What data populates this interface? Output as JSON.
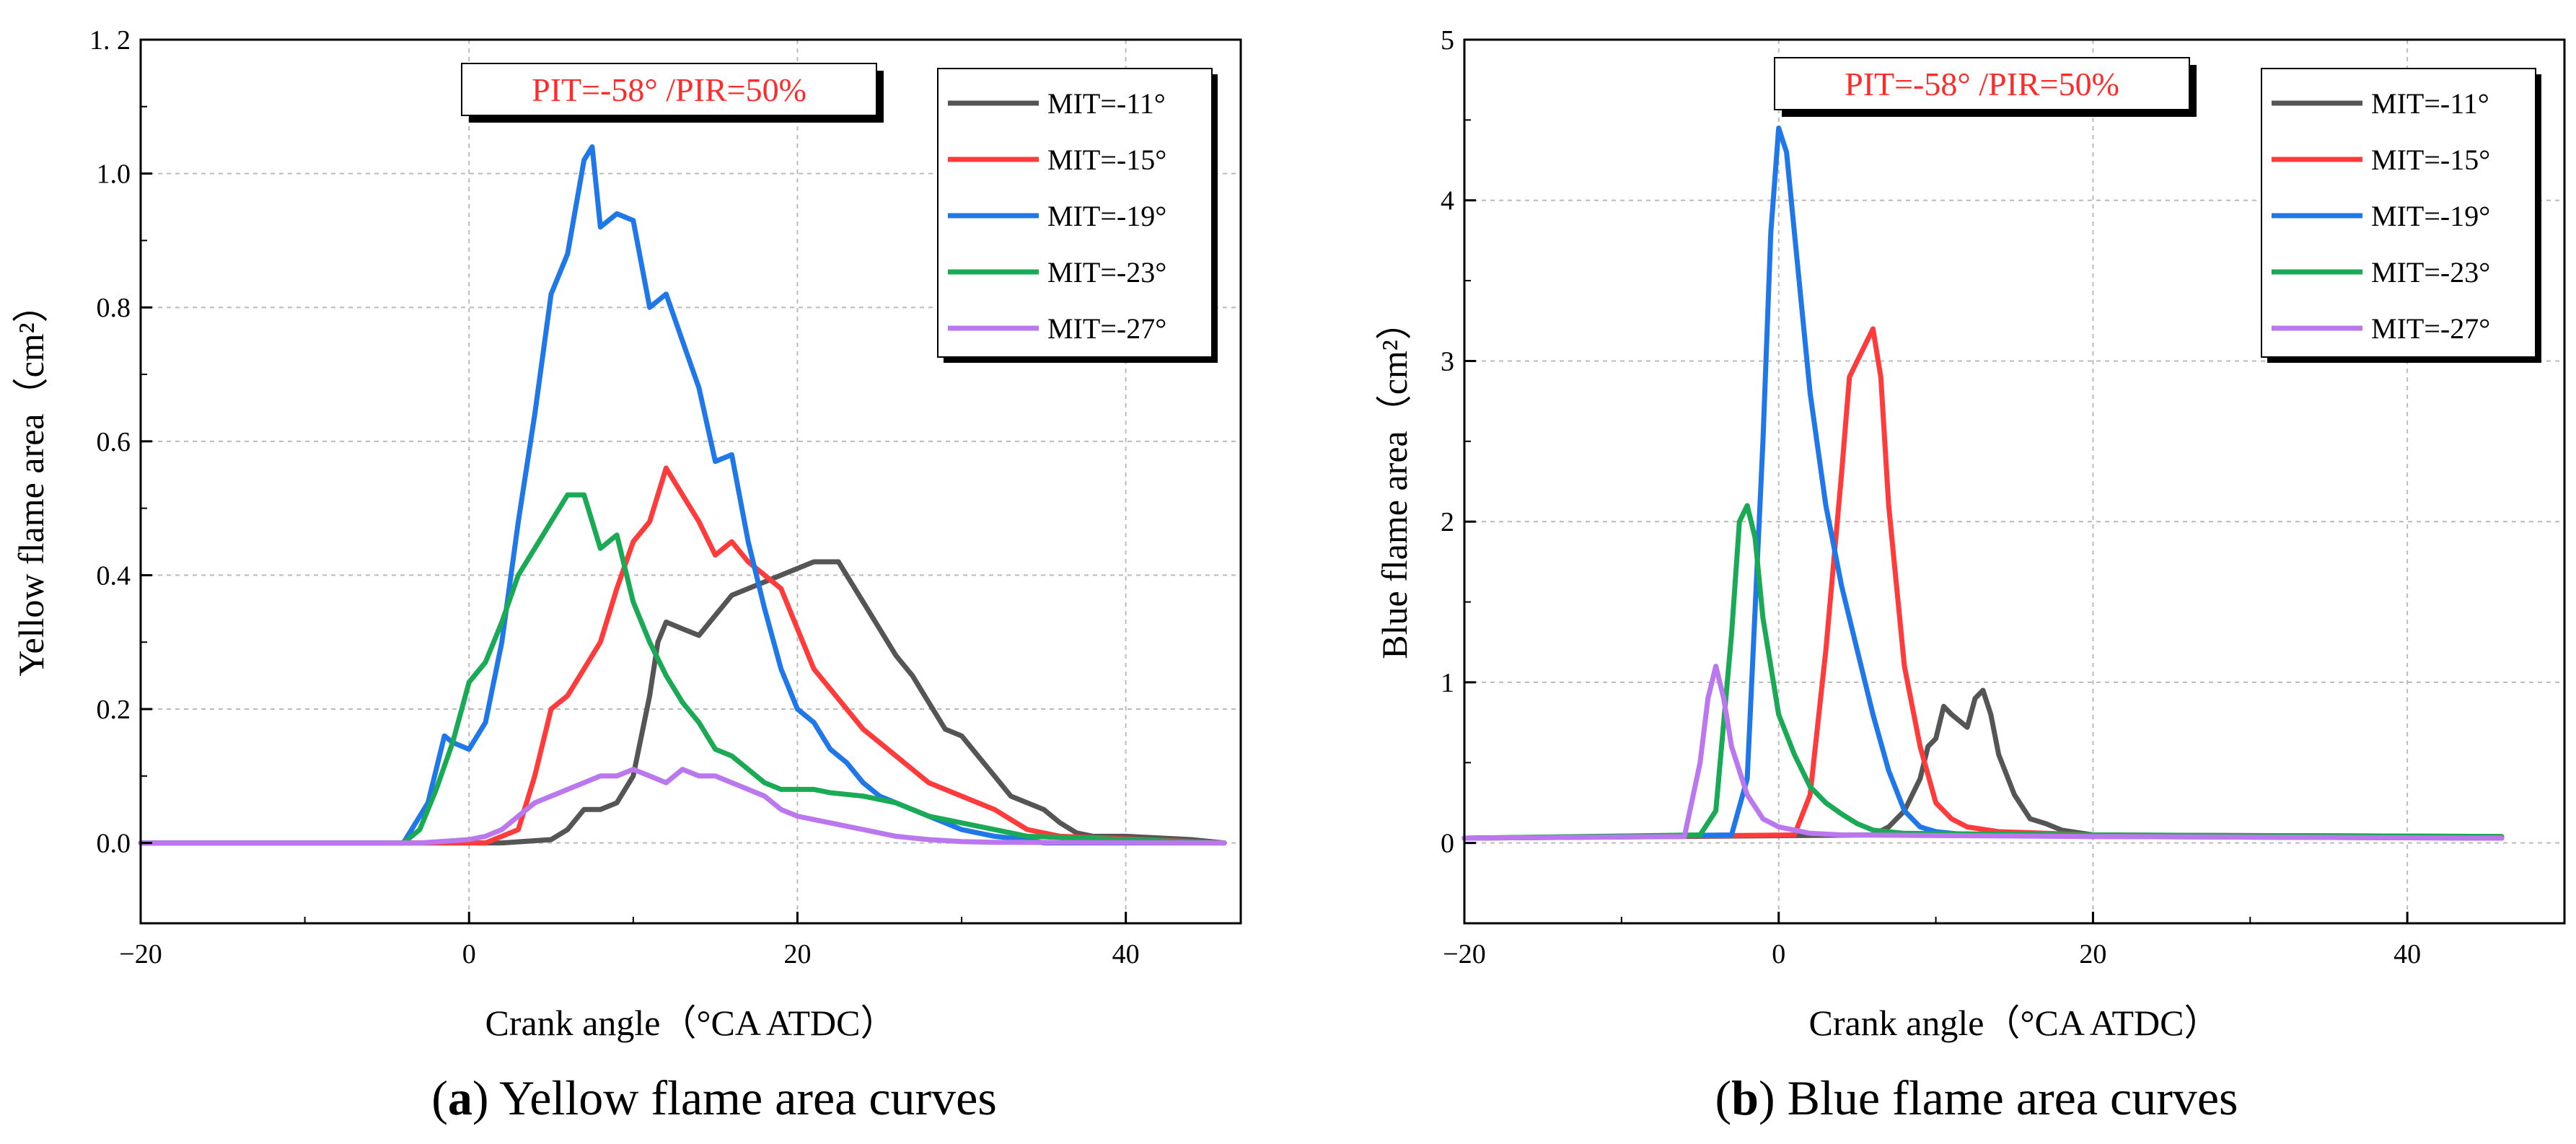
{
  "chart_data": [
    {
      "type": "line",
      "panel_letter": "a",
      "caption": "Yellow flame area curves",
      "xlabel": "Crank angle（°CA ATDC）",
      "ylabel": "Yellow flame area（cm²）",
      "xlim": [
        -20,
        47
      ],
      "ylim": [
        -0.12,
        1.2
      ],
      "xticks": [
        -20,
        0,
        20,
        40
      ],
      "xtick_labels": [
        "−20",
        "0",
        "20",
        "40"
      ],
      "yticks": [
        0,
        0.2,
        0.4,
        0.6,
        0.8,
        1.0,
        1.2
      ],
      "ytick_labels": [
        "0.0",
        "0.2",
        "0.4",
        "0.6",
        "0.8",
        "1.0",
        "1. 2"
      ],
      "grid": "dashed",
      "legend_position": "top-right",
      "annotation": "PIT=-58° /PIR=50%",
      "series": [
        {
          "name": "MIT=-11°",
          "color": "#555555",
          "x": [
            -20,
            2,
            5,
            6,
            7,
            8,
            9,
            10,
            11,
            11.5,
            12,
            13,
            14,
            15,
            16,
            17,
            18,
            19,
            20,
            21,
            22,
            22.5,
            23,
            24,
            25,
            26,
            27,
            28,
            29,
            30,
            31,
            32,
            33,
            34,
            35,
            36,
            37,
            38,
            40,
            44,
            46
          ],
          "y": [
            0,
            0,
            0.005,
            0.02,
            0.05,
            0.05,
            0.06,
            0.1,
            0.22,
            0.3,
            0.33,
            0.32,
            0.31,
            0.34,
            0.37,
            0.38,
            0.39,
            0.4,
            0.41,
            0.42,
            0.42,
            0.42,
            0.4,
            0.36,
            0.32,
            0.28,
            0.25,
            0.21,
            0.17,
            0.16,
            0.13,
            0.1,
            0.07,
            0.06,
            0.05,
            0.03,
            0.015,
            0.01,
            0.01,
            0.005,
            0
          ]
        },
        {
          "name": "MIT=-15°",
          "color": "#ff3b3b",
          "x": [
            -20,
            1,
            3,
            4,
            5,
            6,
            7,
            8,
            9,
            10,
            11,
            12,
            13,
            14,
            15,
            16,
            17,
            18,
            19,
            20,
            21,
            22,
            23,
            24,
            25,
            26,
            27,
            28,
            30,
            32,
            34,
            36,
            46
          ],
          "y": [
            0,
            0,
            0.02,
            0.1,
            0.2,
            0.22,
            0.26,
            0.3,
            0.38,
            0.45,
            0.48,
            0.56,
            0.52,
            0.48,
            0.43,
            0.45,
            0.42,
            0.4,
            0.38,
            0.32,
            0.26,
            0.23,
            0.2,
            0.17,
            0.15,
            0.13,
            0.11,
            0.09,
            0.07,
            0.05,
            0.02,
            0.01,
            0
          ]
        },
        {
          "name": "MIT=-19°",
          "color": "#1f77e8",
          "x": [
            -20,
            -4,
            -2.5,
            -1.5,
            -1,
            0,
            1,
            2,
            3,
            4,
            5,
            6,
            7,
            7.5,
            8,
            9,
            10,
            11,
            12,
            13,
            14,
            15,
            16,
            17,
            18,
            19,
            20,
            21,
            22,
            23,
            24,
            25,
            26,
            27,
            28,
            30,
            32,
            34,
            35,
            46
          ],
          "y": [
            0,
            0,
            0.06,
            0.16,
            0.15,
            0.14,
            0.18,
            0.3,
            0.48,
            0.64,
            0.82,
            0.88,
            1.02,
            1.04,
            0.92,
            0.94,
            0.93,
            0.8,
            0.82,
            0.75,
            0.68,
            0.57,
            0.58,
            0.45,
            0.35,
            0.26,
            0.2,
            0.18,
            0.14,
            0.12,
            0.09,
            0.07,
            0.06,
            0.05,
            0.04,
            0.02,
            0.01,
            0.005,
            0,
            0
          ]
        },
        {
          "name": "MIT=-23°",
          "color": "#1aaa55",
          "x": [
            -20,
            -4,
            -3,
            -2,
            -1,
            0,
            1,
            2,
            3,
            4,
            5,
            6,
            7,
            8,
            9,
            10,
            11,
            12,
            13,
            14,
            15,
            16,
            17,
            18,
            19,
            20,
            21,
            22,
            24,
            26,
            28,
            30,
            32,
            34,
            46
          ],
          "y": [
            0,
            0,
            0.02,
            0.08,
            0.15,
            0.24,
            0.27,
            0.33,
            0.4,
            0.44,
            0.48,
            0.52,
            0.52,
            0.44,
            0.46,
            0.36,
            0.3,
            0.25,
            0.21,
            0.18,
            0.14,
            0.13,
            0.11,
            0.09,
            0.08,
            0.08,
            0.08,
            0.075,
            0.07,
            0.06,
            0.04,
            0.03,
            0.02,
            0.01,
            0
          ]
        },
        {
          "name": "MIT=-27°",
          "color": "#bb77ee",
          "x": [
            -20,
            -3,
            0,
            1,
            2,
            3,
            4,
            5,
            6,
            7,
            8,
            9,
            10,
            11,
            12,
            13,
            14,
            15,
            16,
            17,
            18,
            19,
            20,
            21,
            22,
            24,
            26,
            28,
            30,
            32,
            46
          ],
          "y": [
            0,
            0,
            0.005,
            0.01,
            0.02,
            0.04,
            0.06,
            0.07,
            0.08,
            0.09,
            0.1,
            0.1,
            0.11,
            0.1,
            0.09,
            0.11,
            0.1,
            0.1,
            0.09,
            0.08,
            0.07,
            0.05,
            0.04,
            0.035,
            0.03,
            0.02,
            0.01,
            0.005,
            0.002,
            0.001,
            0
          ]
        }
      ]
    },
    {
      "type": "line",
      "panel_letter": "b",
      "caption": "Blue flame area curves",
      "xlabel": "Crank angle（°CA ATDC）",
      "ylabel": "Blue flame area（cm²）",
      "xlim": [
        -20,
        50
      ],
      "ylim": [
        -0.5,
        5
      ],
      "xticks": [
        -20,
        0,
        20,
        40
      ],
      "xtick_labels": [
        "−20",
        "0",
        "20",
        "40"
      ],
      "yticks": [
        0,
        1,
        2,
        3,
        4,
        5
      ],
      "ytick_labels": [
        "0",
        "1",
        "2",
        "3",
        "4",
        "5"
      ],
      "grid": "dashed",
      "legend_position": "top-right",
      "annotation": "PIT=-58° /PIR=50%",
      "series": [
        {
          "name": "MIT=-11°",
          "color": "#555555",
          "x": [
            -20,
            6,
            7,
            8,
            9,
            9.5,
            10,
            10.5,
            11,
            12,
            12.5,
            13,
            13.5,
            14,
            15,
            16,
            17,
            18,
            20,
            30,
            46
          ],
          "y": [
            0.03,
            0.05,
            0.1,
            0.2,
            0.4,
            0.6,
            0.65,
            0.85,
            0.8,
            0.72,
            0.9,
            0.95,
            0.8,
            0.55,
            0.3,
            0.15,
            0.12,
            0.08,
            0.05,
            0.04,
            0.03
          ]
        },
        {
          "name": "MIT=-15°",
          "color": "#ff3b3b",
          "x": [
            -20,
            1,
            2,
            3,
            4,
            4.5,
            5,
            5.5,
            6,
            6.5,
            7,
            8,
            9,
            10,
            11,
            12,
            14,
            20,
            46
          ],
          "y": [
            0.03,
            0.05,
            0.3,
            1.2,
            2.3,
            2.9,
            3.0,
            3.1,
            3.2,
            2.9,
            2.1,
            1.1,
            0.6,
            0.25,
            0.15,
            0.1,
            0.07,
            0.05,
            0.04
          ]
        },
        {
          "name": "MIT=-19°",
          "color": "#1f77e8",
          "x": [
            -20,
            -3,
            -2,
            -1,
            -0.5,
            0,
            0.5,
            1,
            2,
            3,
            4,
            5,
            6,
            7,
            8,
            9,
            10,
            12,
            20,
            46
          ],
          "y": [
            0.03,
            0.05,
            0.4,
            2.5,
            3.8,
            4.45,
            4.3,
            3.8,
            2.8,
            2.1,
            1.6,
            1.2,
            0.8,
            0.45,
            0.2,
            0.1,
            0.07,
            0.05,
            0.04,
            0.03
          ]
        },
        {
          "name": "MIT=-23°",
          "color": "#1aaa55",
          "x": [
            -20,
            -5,
            -4,
            -3,
            -2.5,
            -2,
            -1.5,
            -1,
            0,
            1,
            2,
            3,
            4,
            5,
            6,
            8,
            20,
            46
          ],
          "y": [
            0.03,
            0.05,
            0.2,
            1.3,
            2.0,
            2.1,
            1.9,
            1.4,
            0.8,
            0.55,
            0.35,
            0.25,
            0.18,
            0.12,
            0.08,
            0.06,
            0.05,
            0.04
          ]
        },
        {
          "name": "MIT=-27°",
          "color": "#bb77ee",
          "x": [
            -20,
            -6,
            -5,
            -4.5,
            -4,
            -3.5,
            -3,
            -2,
            -1,
            0,
            1,
            2,
            4,
            20,
            46
          ],
          "y": [
            0.03,
            0.04,
            0.5,
            0.9,
            1.1,
            0.9,
            0.6,
            0.3,
            0.15,
            0.1,
            0.08,
            0.06,
            0.05,
            0.04,
            0.03
          ]
        }
      ]
    }
  ]
}
